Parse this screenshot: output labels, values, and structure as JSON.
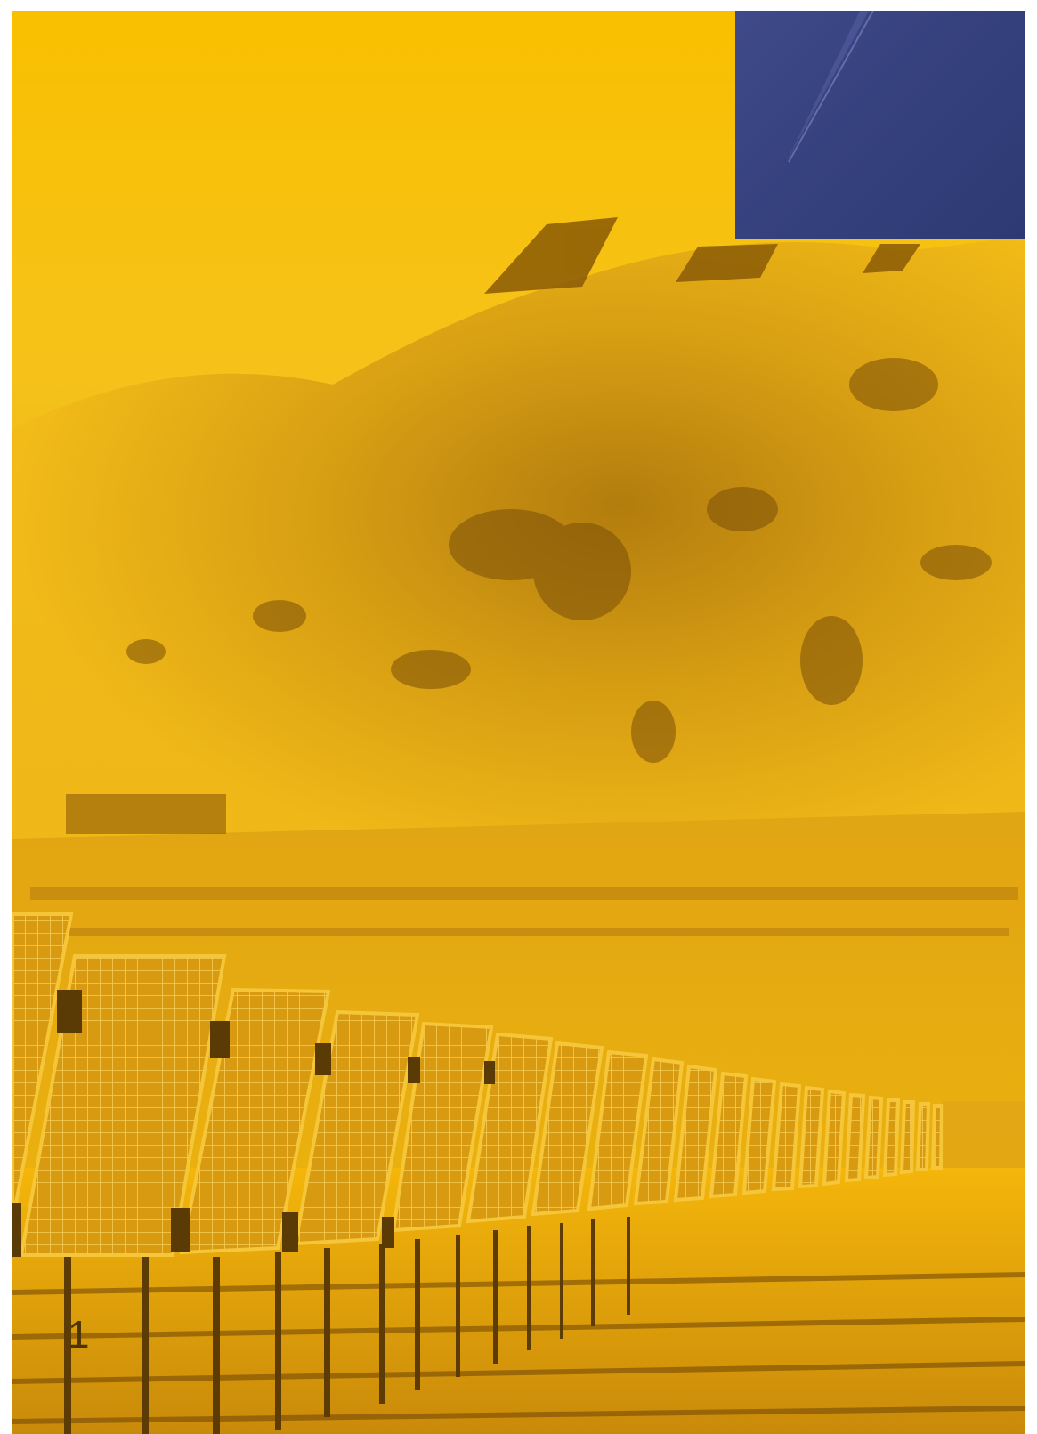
{
  "page": {
    "number": "1",
    "colors": {
      "duotone_yellow": "#f7bd06",
      "duotone_dark": "#6b4a05",
      "accent_blue": "#34407c"
    }
  },
  "photo": {
    "icon": "solar-panel-field-photo"
  }
}
